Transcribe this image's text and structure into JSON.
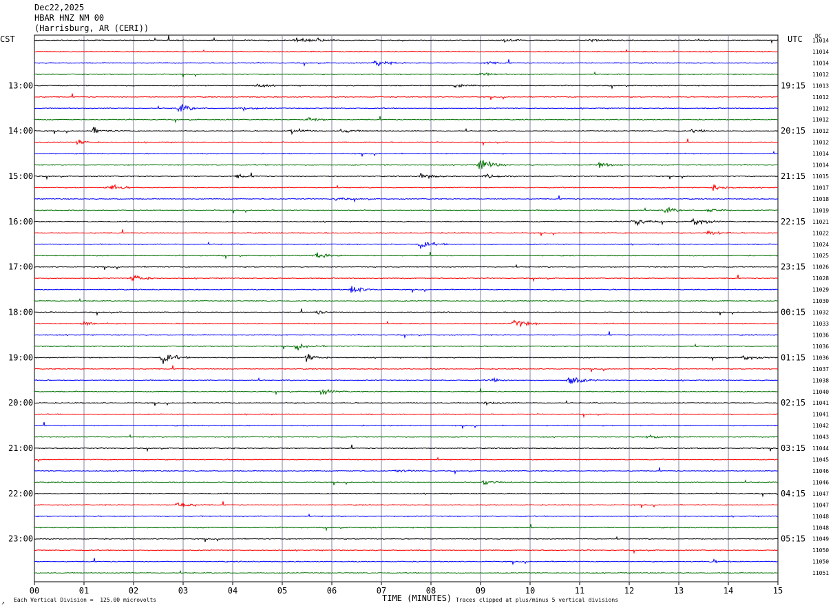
{
  "header": {
    "date": "Dec22,2025",
    "station": "HBAR HNZ NM 00",
    "location": "(Harrisburg, AR (CERI))"
  },
  "axes": {
    "left_tz": "CST",
    "right_tz": "UTC",
    "dc_label": "DC",
    "xlabel": "TIME (MINUTES)"
  },
  "footer": {
    "scale_note": "Each Vertical Division =  125.00 microvolts",
    "clip_note": "Traces clipped at plus/minus 5 vertical divisions"
  },
  "chart_data": {
    "type": "line",
    "subtype": "helicorder",
    "xlim": [
      0,
      15
    ],
    "x_ticks": [
      "00",
      "01",
      "02",
      "03",
      "04",
      "05",
      "06",
      "07",
      "08",
      "09",
      "10",
      "11",
      "12",
      "13",
      "14",
      "15"
    ],
    "trace_colors": [
      "#000000",
      "#ff0000",
      "#0000ff",
      "#007000"
    ],
    "left_hour_labels": [
      "13:00",
      "14:00",
      "15:00",
      "16:00",
      "17:00",
      "18:00",
      "19:00",
      "20:00",
      "21:00",
      "22:00",
      "23:00"
    ],
    "right_hour_labels": [
      "19:15",
      "20:15",
      "21:15",
      "22:15",
      "23:15",
      "00:15",
      "01:15",
      "02:15",
      "03:15",
      "04:15",
      "05:15"
    ],
    "dc_offsets": [
      "11014",
      "11014",
      "11014",
      "11012",
      "11013",
      "11012",
      "11012",
      "11012",
      "11012",
      "11012",
      "11014",
      "11014",
      "11015",
      "11017",
      "11018",
      "11019",
      "11021",
      "11022",
      "11024",
      "11025",
      "11026",
      "11028",
      "11029",
      "11030",
      "11032",
      "11033",
      "11036",
      "11036",
      "11036",
      "11037",
      "11038",
      "11040",
      "11041",
      "11041",
      "11042",
      "11043",
      "11044",
      "11045",
      "11046",
      "11046",
      "11047",
      "11047",
      "11048",
      "11048",
      "11049",
      "11050",
      "11050",
      "11051"
    ],
    "events": [
      {
        "trace": 0,
        "minute": 5.3,
        "amp": 1.2
      },
      {
        "trace": 0,
        "minute": 5.7,
        "amp": 1.0
      },
      {
        "trace": 0,
        "minute": 9.5,
        "amp": 0.8
      },
      {
        "trace": 0,
        "minute": 11.2,
        "amp": 0.8
      },
      {
        "trace": 2,
        "minute": 6.9,
        "amp": 1.8
      },
      {
        "trace": 2,
        "minute": 9.1,
        "amp": 0.9
      },
      {
        "trace": 3,
        "minute": 9.0,
        "amp": 0.8
      },
      {
        "trace": 4,
        "minute": 4.5,
        "amp": 0.8
      },
      {
        "trace": 4,
        "minute": 8.5,
        "amp": 1.0
      },
      {
        "trace": 6,
        "minute": 2.9,
        "amp": 2.5
      },
      {
        "trace": 6,
        "minute": 4.2,
        "amp": 1.0
      },
      {
        "trace": 7,
        "minute": 5.5,
        "amp": 1.5
      },
      {
        "trace": 8,
        "minute": 1.2,
        "amp": 1.6
      },
      {
        "trace": 8,
        "minute": 5.2,
        "amp": 2.0
      },
      {
        "trace": 8,
        "minute": 6.2,
        "amp": 1.2
      },
      {
        "trace": 8,
        "minute": 13.3,
        "amp": 0.8
      },
      {
        "trace": 9,
        "minute": 0.9,
        "amp": 1.2
      },
      {
        "trace": 11,
        "minute": 9.0,
        "amp": 4.0
      },
      {
        "trace": 11,
        "minute": 11.4,
        "amp": 1.8
      },
      {
        "trace": 12,
        "minute": 4.1,
        "amp": 1.0
      },
      {
        "trace": 12,
        "minute": 7.8,
        "amp": 1.6
      },
      {
        "trace": 12,
        "minute": 9.1,
        "amp": 1.4
      },
      {
        "trace": 13,
        "minute": 1.5,
        "amp": 2.2
      },
      {
        "trace": 13,
        "minute": 13.7,
        "amp": 1.8
      },
      {
        "trace": 14,
        "minute": 6.1,
        "amp": 0.8
      },
      {
        "trace": 15,
        "minute": 12.7,
        "amp": 2.0
      },
      {
        "trace": 15,
        "minute": 13.6,
        "amp": 1.6
      },
      {
        "trace": 16,
        "minute": 12.1,
        "amp": 2.2
      },
      {
        "trace": 16,
        "minute": 13.3,
        "amp": 2.5
      },
      {
        "trace": 17,
        "minute": 13.6,
        "amp": 1.5
      },
      {
        "trace": 18,
        "minute": 7.8,
        "amp": 2.2
      },
      {
        "trace": 19,
        "minute": 5.7,
        "amp": 1.8
      },
      {
        "trace": 21,
        "minute": 2.0,
        "amp": 2.5
      },
      {
        "trace": 22,
        "minute": 6.4,
        "amp": 2.5
      },
      {
        "trace": 24,
        "minute": 5.7,
        "amp": 0.9
      },
      {
        "trace": 25,
        "minute": 1.0,
        "amp": 1.4
      },
      {
        "trace": 25,
        "minute": 9.7,
        "amp": 2.8
      },
      {
        "trace": 27,
        "minute": 5.3,
        "amp": 2.0
      },
      {
        "trace": 28,
        "minute": 2.6,
        "amp": 3.0
      },
      {
        "trace": 28,
        "minute": 5.5,
        "amp": 2.0
      },
      {
        "trace": 28,
        "minute": 14.3,
        "amp": 1.4
      },
      {
        "trace": 30,
        "minute": 9.2,
        "amp": 1.0
      },
      {
        "trace": 30,
        "minute": 10.8,
        "amp": 3.0
      },
      {
        "trace": 31,
        "minute": 5.8,
        "amp": 1.4
      },
      {
        "trace": 32,
        "minute": 9.1,
        "amp": 0.7
      },
      {
        "trace": 35,
        "minute": 12.4,
        "amp": 1.0
      },
      {
        "trace": 38,
        "minute": 7.3,
        "amp": 0.7
      },
      {
        "trace": 39,
        "minute": 9.1,
        "amp": 1.6
      },
      {
        "trace": 41,
        "minute": 2.9,
        "amp": 2.5
      },
      {
        "trace": 46,
        "minute": 13.7,
        "amp": 0.7
      }
    ]
  }
}
